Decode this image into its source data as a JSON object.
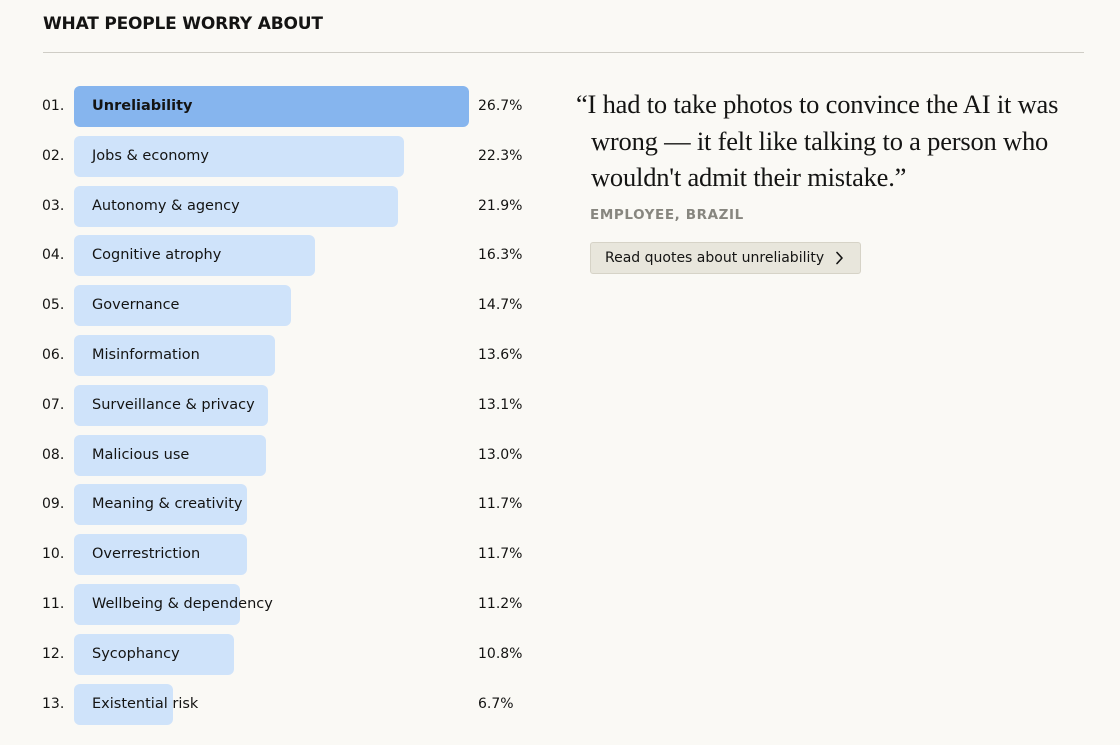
{
  "section": {
    "title": "WHAT PEOPLE WORRY ABOUT"
  },
  "chart_data": {
    "type": "bar",
    "orientation": "horizontal",
    "categories": [
      "Unreliability",
      "Jobs & economy",
      "Autonomy & agency",
      "Cognitive atrophy",
      "Governance",
      "Misinformation",
      "Surveillance & privacy",
      "Malicious use",
      "Meaning & creativity",
      "Overrestriction",
      "Wellbeing & dependency",
      "Sycophancy",
      "Existential risk"
    ],
    "ranks": [
      "01.",
      "02.",
      "03.",
      "04.",
      "05.",
      "06.",
      "07.",
      "08.",
      "09.",
      "10.",
      "11.",
      "12.",
      "13."
    ],
    "values": [
      26.7,
      22.3,
      21.9,
      16.3,
      14.7,
      13.6,
      13.1,
      13.0,
      11.7,
      11.7,
      11.2,
      10.8,
      6.7
    ],
    "value_labels": [
      "26.7%",
      "22.3%",
      "21.9%",
      "16.3%",
      "14.7%",
      "13.6%",
      "13.1%",
      "13.0%",
      "11.7%",
      "11.7%",
      "11.2%",
      "10.8%",
      "6.7%"
    ],
    "unit": "%",
    "xlim": [
      0,
      26.7
    ],
    "highlight_index": 0,
    "colors": {
      "highlight": "#86b5ee",
      "default": "#cfe3fa"
    },
    "grid": false,
    "title": "",
    "xlabel": "",
    "ylabel": ""
  },
  "quote": {
    "text": "“I had to take photos to convince the AI it was wrong — it felt like talking to a person who wouldn't admit their mistake.”",
    "attribution": "EMPLOYEE, BRAZIL",
    "button_label": "Read quotes about unreliability",
    "button_icon": "chevron-right-icon"
  }
}
